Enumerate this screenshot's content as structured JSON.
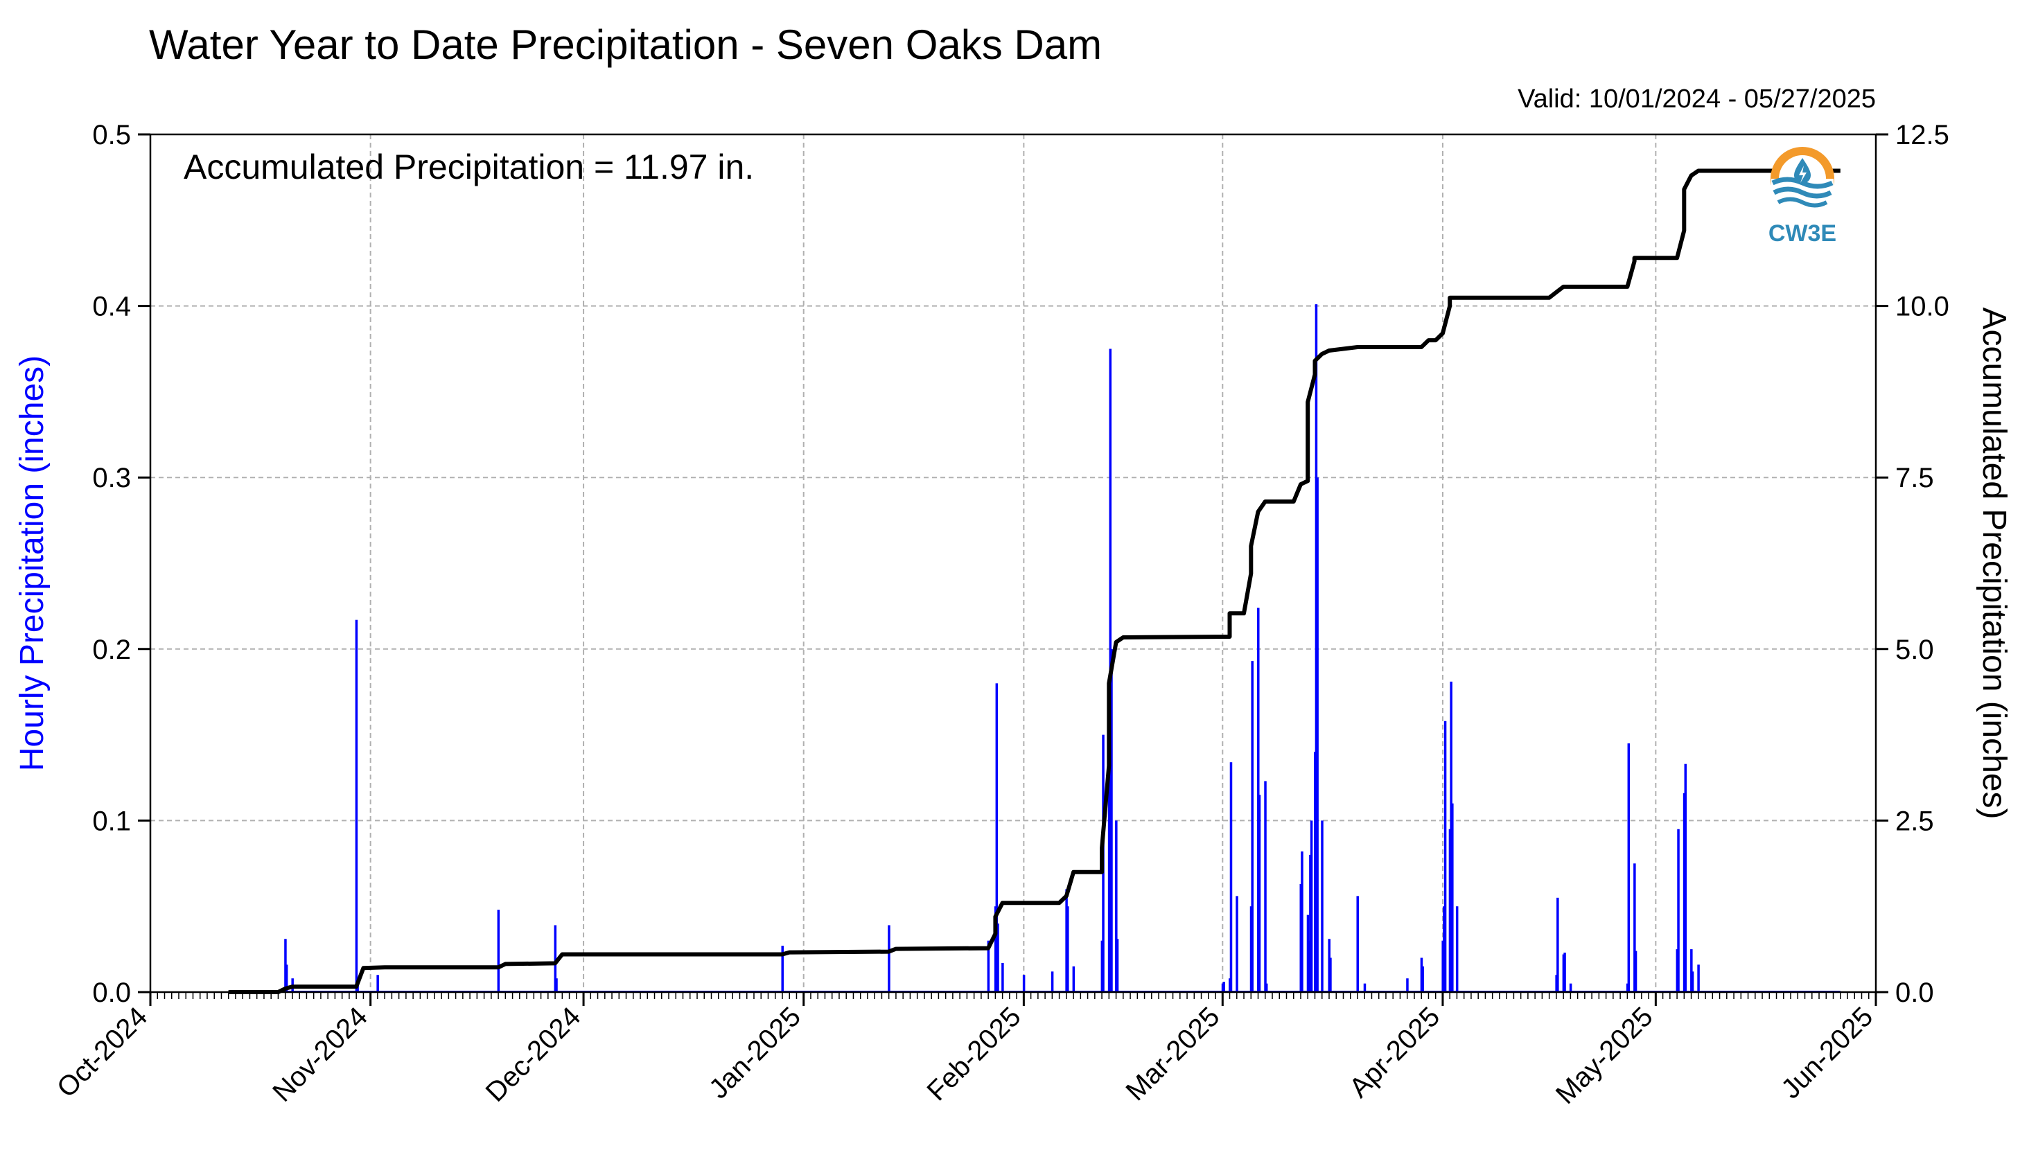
{
  "title": "Water Year to Date Precipitation - Seven Oaks Dam",
  "valid_text": "Valid: 10/01/2024 - 05/27/2025",
  "accumulated_text": "Accumulated Precipitation = 11.97 in.",
  "logo_text": "CW3E",
  "colors": {
    "hourly": "#0000ff",
    "accumulated": "#000000",
    "grid": "#b0b0b0",
    "logo_orange": "#f39a2b",
    "logo_blue": "#2f8ab8"
  },
  "chart_data": {
    "type": "bar",
    "x_axis": {
      "ticks": [
        "Oct-2024",
        "Nov-2024",
        "Dec-2024",
        "Jan-2025",
        "Feb-2025",
        "Mar-2025",
        "Apr-2025",
        "May-2025",
        "Jun-2025"
      ],
      "range": [
        "2024-10-01",
        "2025-06-01"
      ],
      "minor_ticks": "daily"
    },
    "y_left": {
      "label": "Hourly Precipitation (inches)",
      "ylim": [
        0,
        0.5
      ],
      "ticks": [
        "0.0",
        "0.1",
        "0.2",
        "0.3",
        "0.4",
        "0.5"
      ]
    },
    "y_right": {
      "label": "Accumulated Precipitation (inches)",
      "ylim": [
        0,
        12.5
      ],
      "ticks": [
        "0.0",
        "2.5",
        "5.0",
        "7.5",
        "10.0",
        "12.5"
      ]
    },
    "grid": true,
    "series": [
      {
        "type": "bar",
        "axis": "left",
        "points": [
          [
            "2024-10-20",
            0.031
          ],
          [
            "2024-10-20",
            0.016
          ],
          [
            "2024-10-21",
            0.008
          ],
          [
            "2024-10-30",
            0.217
          ],
          [
            "2024-10-30",
            0.006
          ],
          [
            "2024-11-02",
            0.01
          ],
          [
            "2024-11-19",
            0.048
          ],
          [
            "2024-11-27",
            0.039
          ],
          [
            "2024-11-27",
            0.008
          ],
          [
            "2024-12-29",
            0.027
          ],
          [
            "2025-01-13",
            0.039
          ],
          [
            "2025-01-27",
            0.03
          ],
          [
            "2025-01-28",
            0.05
          ],
          [
            "2025-01-28",
            0.18
          ],
          [
            "2025-01-28",
            0.04
          ],
          [
            "2025-01-29",
            0.017
          ],
          [
            "2025-02-01",
            0.01
          ],
          [
            "2025-02-05",
            0.012
          ],
          [
            "2025-02-07",
            0.06
          ],
          [
            "2025-02-07",
            0.05
          ],
          [
            "2025-02-08",
            0.015
          ],
          [
            "2025-02-12",
            0.03
          ],
          [
            "2025-02-12",
            0.15
          ],
          [
            "2025-02-13",
            0.18
          ],
          [
            "2025-02-13",
            0.375
          ],
          [
            "2025-02-13",
            0.2
          ],
          [
            "2025-02-14",
            0.1
          ],
          [
            "2025-02-14",
            0.031
          ],
          [
            "2025-03-01",
            0.005
          ],
          [
            "2025-03-01",
            0.006
          ],
          [
            "2025-03-02",
            0.008
          ],
          [
            "2025-03-02",
            0.134
          ],
          [
            "2025-03-03",
            0.056
          ],
          [
            "2025-03-05",
            0.05
          ],
          [
            "2025-03-05",
            0.193
          ],
          [
            "2025-03-06",
            0.224
          ],
          [
            "2025-03-06",
            0.115
          ],
          [
            "2025-03-07",
            0.123
          ],
          [
            "2025-03-07",
            0.005
          ],
          [
            "2025-03-12",
            0.063
          ],
          [
            "2025-03-12",
            0.082
          ],
          [
            "2025-03-13",
            0.045
          ],
          [
            "2025-03-13",
            0.03
          ],
          [
            "2025-03-13",
            0.08
          ],
          [
            "2025-03-13",
            0.1
          ],
          [
            "2025-03-14",
            0.14
          ],
          [
            "2025-03-14",
            0.401
          ],
          [
            "2025-03-14",
            0.3
          ],
          [
            "2025-03-15",
            0.1
          ],
          [
            "2025-03-16",
            0.031
          ],
          [
            "2025-03-16",
            0.02
          ],
          [
            "2025-03-20",
            0.056
          ],
          [
            "2025-03-21",
            0.005
          ],
          [
            "2025-03-27",
            0.008
          ],
          [
            "2025-03-29",
            0.02
          ],
          [
            "2025-03-29",
            0.015
          ],
          [
            "2025-04-01",
            0.03
          ],
          [
            "2025-04-01",
            0.05
          ],
          [
            "2025-04-01",
            0.158
          ],
          [
            "2025-04-02",
            0.095
          ],
          [
            "2025-04-02",
            0.181
          ],
          [
            "2025-04-02",
            0.11
          ],
          [
            "2025-04-03",
            0.05
          ],
          [
            "2025-04-17",
            0.01
          ],
          [
            "2025-04-17",
            0.055
          ],
          [
            "2025-04-18",
            0.022
          ],
          [
            "2025-04-18",
            0.023
          ],
          [
            "2025-04-19",
            0.005
          ],
          [
            "2025-04-27",
            0.005
          ],
          [
            "2025-04-27",
            0.145
          ],
          [
            "2025-04-28",
            0.075
          ],
          [
            "2025-04-28",
            0.024
          ],
          [
            "2025-05-04",
            0.025
          ],
          [
            "2025-05-04",
            0.095
          ],
          [
            "2025-05-05",
            0.116
          ],
          [
            "2025-05-05",
            0.133
          ],
          [
            "2025-05-06",
            0.025
          ],
          [
            "2025-05-06",
            0.012
          ],
          [
            "2025-05-07",
            0.016
          ]
        ]
      },
      {
        "type": "line",
        "axis": "right",
        "points": [
          [
            "2024-10-12",
            0.0
          ],
          [
            "2024-10-19",
            0.0
          ],
          [
            "2024-10-20",
            0.05
          ],
          [
            "2024-10-21",
            0.08
          ],
          [
            "2024-10-30",
            0.08
          ],
          [
            "2024-10-31",
            0.35
          ],
          [
            "2024-11-03",
            0.36
          ],
          [
            "2024-11-19",
            0.36
          ],
          [
            "2024-11-20",
            0.41
          ],
          [
            "2024-11-27",
            0.42
          ],
          [
            "2024-11-28",
            0.55
          ],
          [
            "2024-12-29",
            0.55
          ],
          [
            "2024-12-30",
            0.58
          ],
          [
            "2025-01-13",
            0.59
          ],
          [
            "2025-01-14",
            0.63
          ],
          [
            "2025-01-27",
            0.64
          ],
          [
            "2025-01-28",
            0.85
          ],
          [
            "2025-01-28",
            1.1
          ],
          [
            "2025-01-29",
            1.3
          ],
          [
            "2025-02-06",
            1.3
          ],
          [
            "2025-02-07",
            1.4
          ],
          [
            "2025-02-08",
            1.75
          ],
          [
            "2025-02-12",
            1.75
          ],
          [
            "2025-02-12",
            2.1
          ],
          [
            "2025-02-13",
            3.3
          ],
          [
            "2025-02-13",
            4.5
          ],
          [
            "2025-02-14",
            5.1
          ],
          [
            "2025-02-15",
            5.17
          ],
          [
            "2025-03-02",
            5.18
          ],
          [
            "2025-03-02",
            5.52
          ],
          [
            "2025-03-04",
            5.52
          ],
          [
            "2025-03-05",
            6.1
          ],
          [
            "2025-03-05",
            6.5
          ],
          [
            "2025-03-06",
            7.0
          ],
          [
            "2025-03-07",
            7.15
          ],
          [
            "2025-03-11",
            7.15
          ],
          [
            "2025-03-12",
            7.4
          ],
          [
            "2025-03-13",
            7.45
          ],
          [
            "2025-03-13",
            8.6
          ],
          [
            "2025-03-14",
            9.0
          ],
          [
            "2025-03-14",
            9.2
          ],
          [
            "2025-03-15",
            9.3
          ],
          [
            "2025-03-16",
            9.35
          ],
          [
            "2025-03-20",
            9.4
          ],
          [
            "2025-03-29",
            9.4
          ],
          [
            "2025-03-30",
            9.5
          ],
          [
            "2025-03-31",
            9.5
          ],
          [
            "2025-04-01",
            9.6
          ],
          [
            "2025-04-02",
            10.0
          ],
          [
            "2025-04-02",
            10.12
          ],
          [
            "2025-04-16",
            10.12
          ],
          [
            "2025-04-17",
            10.2
          ],
          [
            "2025-04-18",
            10.28
          ],
          [
            "2025-04-27",
            10.28
          ],
          [
            "2025-04-28",
            10.65
          ],
          [
            "2025-04-28",
            10.7
          ],
          [
            "2025-05-04",
            10.7
          ],
          [
            "2025-05-05",
            11.1
          ],
          [
            "2025-05-05",
            11.7
          ],
          [
            "2025-05-06",
            11.9
          ],
          [
            "2025-05-07",
            11.97
          ],
          [
            "2025-05-27",
            11.97
          ]
        ]
      }
    ]
  }
}
